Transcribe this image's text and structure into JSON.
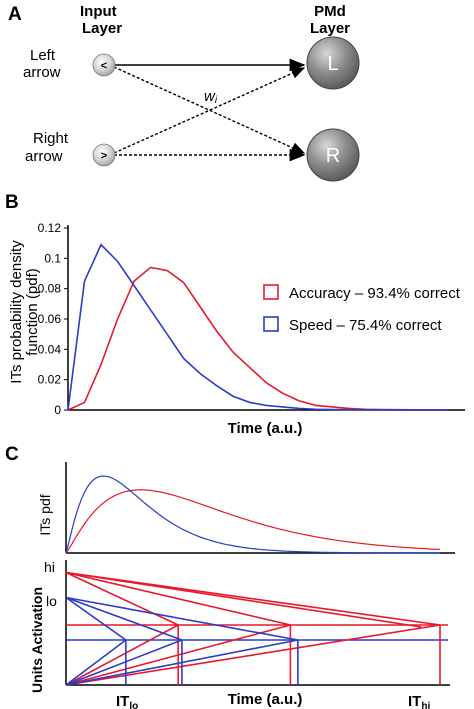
{
  "panels": {
    "a": {
      "label": "A",
      "input_header": [
        "Input",
        "Layer"
      ],
      "output_header": [
        "PMd",
        "Layer"
      ],
      "left_input": {
        "label": [
          "Left",
          "arrow"
        ],
        "symbol": "<"
      },
      "right_input": {
        "label": [
          "Right",
          "arrow"
        ],
        "symbol": ">"
      },
      "left_output": "L",
      "right_output": "R",
      "weight_label": "w",
      "weight_subscript": "i"
    },
    "b": {
      "label": "B",
      "legend": [
        {
          "text": "Accuracy – 93.4% correct",
          "color": "#e8192c"
        },
        {
          "text": "Speed – 75.4% correct",
          "color": "#2b3cc9"
        }
      ]
    },
    "c": {
      "label": "C",
      "top_ylabel": "ITs pdf",
      "bottom_ylabel": "Units Activation",
      "y_markers": [
        "hi",
        "lo"
      ],
      "xlabel": "Time (a.u.)",
      "it_lo": {
        "main": "IT",
        "sub": "lo"
      },
      "it_hi": {
        "main": "IT",
        "sub": "hi"
      }
    }
  },
  "chart_data": [
    {
      "type": "line",
      "panel": "B",
      "xlabel": "Time (a.u.)",
      "ylabel": "ITs probability density function (pdf)",
      "ylim": [
        0,
        0.12
      ],
      "yticks": [
        "0",
        "0.02",
        "0.04",
        "0.06",
        "0.08",
        "0.1",
        "0.12"
      ],
      "x": [
        0,
        1,
        2,
        3,
        4,
        5,
        6,
        7,
        8,
        9,
        10,
        11,
        12,
        13,
        14,
        15,
        16,
        17,
        18,
        19,
        20,
        21,
        22,
        23
      ],
      "series": [
        {
          "name": "Accuracy – 93.4% correct",
          "color": "#e8192c",
          "values": [
            0,
            0.005,
            0.03,
            0.06,
            0.085,
            0.094,
            0.092,
            0.084,
            0.068,
            0.052,
            0.038,
            0.028,
            0.018,
            0.011,
            0.006,
            0.003,
            0.002,
            0.001,
            0.0005,
            0.0003,
            0.0002,
            0.0001,
            0.0001,
            0.0001
          ]
        },
        {
          "name": "Speed – 75.4% correct",
          "color": "#2b3cc9",
          "values": [
            0,
            0.085,
            0.109,
            0.098,
            0.082,
            0.066,
            0.05,
            0.034,
            0.024,
            0.016,
            0.009,
            0.005,
            0.003,
            0.002,
            0.001,
            0.0005,
            0.0003,
            0.0002,
            0.0001,
            0.0001,
            0,
            0,
            0,
            0
          ]
        }
      ]
    },
    {
      "type": "line",
      "panel": "C-top",
      "ylabel": "ITs pdf",
      "series": [
        {
          "color": "#e8192c",
          "shape": "peak",
          "peak_at": 0.2,
          "peak_height": 0.82
        },
        {
          "color": "#2b3cc9",
          "shape": "peak",
          "peak_at": 0.1,
          "peak_height": 1.0
        }
      ]
    },
    {
      "type": "line",
      "panel": "C-bottom",
      "ylabel": "Units Activation",
      "xlabel": "Time (a.u.)",
      "thresholds": {
        "red": 0.48,
        "blue": 0.36
      },
      "starts": {
        "hi": 0.9,
        "lo": 0.7
      },
      "red_crossings": [
        0.3,
        0.6,
        1.0
      ],
      "blue_crossings": [
        0.16,
        0.31,
        0.62
      ]
    }
  ]
}
